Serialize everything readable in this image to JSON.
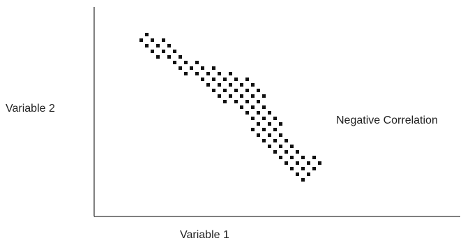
{
  "diagram": {
    "y_label": "Variable 2",
    "x_label": "Variable 1",
    "annotation": "Negative Correlation",
    "point_color": "#111111",
    "axis_color": "#000000"
  }
}
